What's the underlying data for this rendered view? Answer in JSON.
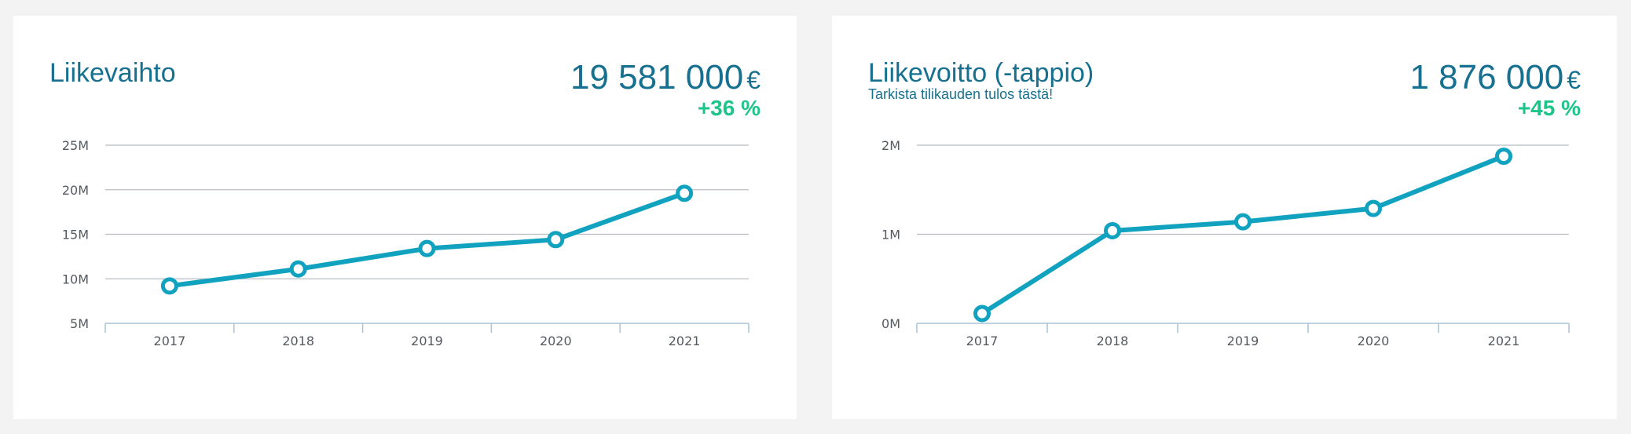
{
  "cards": [
    {
      "title": "Liikevaihto",
      "subtitle": "",
      "value": "19 581 000",
      "currency": "€",
      "change": "+36 %"
    },
    {
      "title": "Liikevoitto (-tappio)",
      "subtitle": "Tarkista tilikauden tulos tästä!",
      "value": "1 876 000",
      "currency": "€",
      "change": "+45 %"
    }
  ],
  "colors": {
    "line": "#10a2bf",
    "grid": "#b9bdc2",
    "axis": "#a9c4d6",
    "title": "#17708f",
    "positive": "#1fc48a"
  },
  "chart_data": [
    {
      "type": "line",
      "categories": [
        "2017",
        "2018",
        "2019",
        "2020",
        "2021"
      ],
      "series": [
        {
          "values": [
            9.2,
            11.1,
            13.4,
            14.4,
            19.6
          ]
        }
      ],
      "yticks": [
        5,
        10,
        15,
        20,
        25
      ],
      "ytick_labels": [
        "5M",
        "10M",
        "15M",
        "20M",
        "25M"
      ],
      "ylim": [
        5,
        25
      ],
      "grid": true
    },
    {
      "type": "line",
      "categories": [
        "2017",
        "2018",
        "2019",
        "2020",
        "2021"
      ],
      "series": [
        {
          "values": [
            0.11,
            1.04,
            1.14,
            1.29,
            1.876
          ]
        }
      ],
      "yticks": [
        0,
        1,
        2
      ],
      "ytick_labels": [
        "0M",
        "1M",
        "2M"
      ],
      "ylim": [
        0,
        2
      ],
      "grid": true
    }
  ]
}
